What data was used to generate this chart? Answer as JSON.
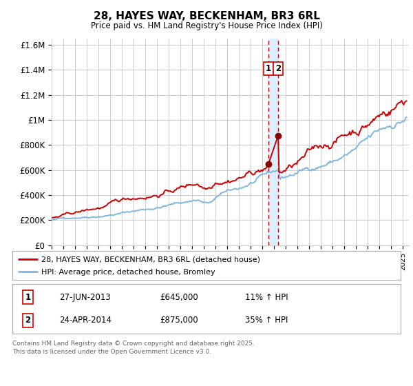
{
  "title": "28, HAYES WAY, BECKENHAM, BR3 6RL",
  "subtitle": "Price paid vs. HM Land Registry's House Price Index (HPI)",
  "title_fontsize": 11,
  "subtitle_fontsize": 9,
  "red_label": "28, HAYES WAY, BECKENHAM, BR3 6RL (detached house)",
  "blue_label": "HPI: Average price, detached house, Bromley",
  "footnote": "Contains HM Land Registry data © Crown copyright and database right 2025.\nThis data is licensed under the Open Government Licence v3.0.",
  "table_rows": [
    [
      "1",
      "27-JUN-2013",
      "£645,000",
      "11% ↑ HPI"
    ],
    [
      "2",
      "24-APR-2014",
      "£875,000",
      "35% ↑ HPI"
    ]
  ],
  "sale1_x": 2013.49,
  "sale1_y": 645000,
  "sale2_x": 2014.32,
  "sale2_y": 875000,
  "vline_x1": 2013.49,
  "vline_x2": 2014.32,
  "vspan_x1": 2013.49,
  "vspan_x2": 2014.32,
  "ylim": [
    0,
    1650000
  ],
  "xlim": [
    1995,
    2025.5
  ],
  "yticks": [
    0,
    200000,
    400000,
    600000,
    800000,
    1000000,
    1200000,
    1400000,
    1600000
  ],
  "ytick_labels": [
    "£0",
    "£200K",
    "£400K",
    "£600K",
    "£800K",
    "£1M",
    "£1.2M",
    "£1.4M",
    "£1.6M"
  ],
  "red_color": "#cc0000",
  "blue_color": "#7eb6e0",
  "dot_color": "#8b0000",
  "vspan_color": "#ddeeff",
  "vline_color": "#cc0000",
  "background_color": "#ffffff",
  "grid_color": "#cccccc",
  "border_color": "#aaaaaa",
  "footnote_color": "#666666"
}
